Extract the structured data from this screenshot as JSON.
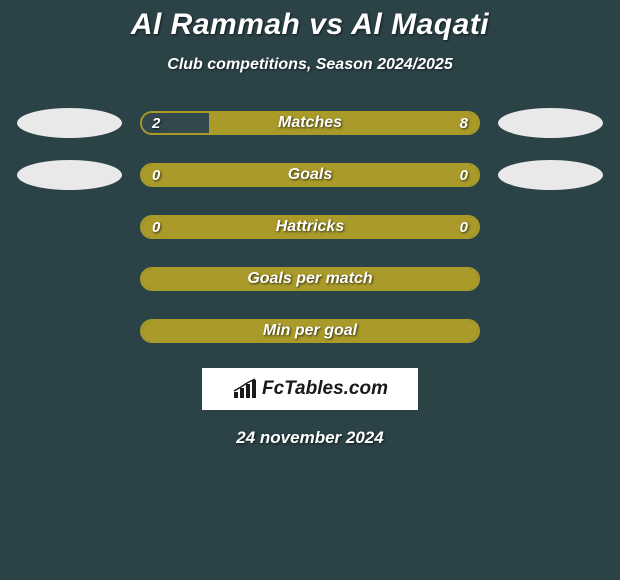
{
  "background_color": "#2b4247",
  "title": "Al Rammah vs Al Maqati",
  "subtitle": "Club competitions, Season 2024/2025",
  "ellipse_colors": {
    "left_top": "#e9e9e9",
    "right_top": "#e9e9e9",
    "left_mid": "#e9e9e9",
    "right_mid": "#e9e9e9"
  },
  "bar_border_color": "#a99a2a",
  "fill_color_neutral": "#a99a2a",
  "fill_color_dark": "#33484d",
  "rows": [
    {
      "label": "Matches",
      "left_val": "2",
      "right_val": "8",
      "left_pct": 20,
      "right_pct": 80,
      "left_fill": "#33484d",
      "right_fill": "#a99a2a",
      "show_left_ellipse": true,
      "show_right_ellipse": true
    },
    {
      "label": "Goals",
      "left_val": "0",
      "right_val": "0",
      "left_pct": 0,
      "right_pct": 100,
      "left_fill": "#a99a2a",
      "right_fill": "#a99a2a",
      "show_left_ellipse": true,
      "show_right_ellipse": true
    },
    {
      "label": "Hattricks",
      "left_val": "0",
      "right_val": "0",
      "left_pct": 0,
      "right_pct": 100,
      "left_fill": "#a99a2a",
      "right_fill": "#a99a2a",
      "show_left_ellipse": false,
      "show_right_ellipse": false
    },
    {
      "label": "Goals per match",
      "left_val": "",
      "right_val": "",
      "left_pct": 0,
      "right_pct": 100,
      "left_fill": "#a99a2a",
      "right_fill": "#a99a2a",
      "show_left_ellipse": false,
      "show_right_ellipse": false
    },
    {
      "label": "Min per goal",
      "left_val": "",
      "right_val": "",
      "left_pct": 0,
      "right_pct": 100,
      "left_fill": "#a99a2a",
      "right_fill": "#a99a2a",
      "show_left_ellipse": false,
      "show_right_ellipse": false
    }
  ],
  "logo_text": "FcTables.com",
  "date": "24 november 2024"
}
